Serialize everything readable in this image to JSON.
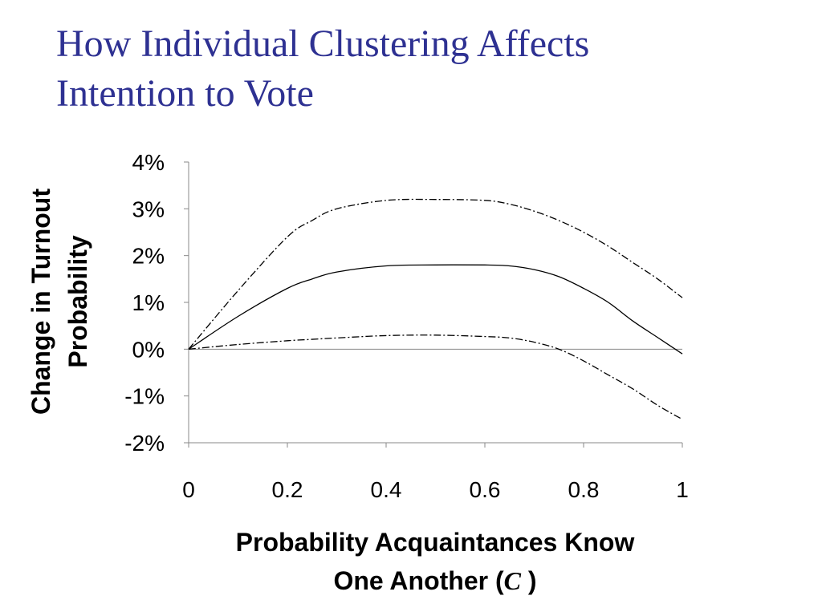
{
  "slide": {
    "title_line1": "How Individual Clustering Affects",
    "title_line2": "Intention to Vote"
  },
  "chart_data": {
    "type": "line",
    "xlabel_line1": "Probability Acquaintances Know",
    "xlabel_line2_prefix": "One Another (",
    "xlabel_symbol": "C",
    "xlabel_line2_suffix": " )",
    "ylabel_line1": "Change in Turnout",
    "ylabel_line2": "Probability",
    "xlim": [
      0,
      1
    ],
    "ylim": [
      -2,
      4
    ],
    "x_ticks": [
      0,
      0.2,
      0.4,
      0.6,
      0.8,
      1
    ],
    "x_tick_labels": [
      "0",
      "0.2",
      "0.4",
      "0.6",
      "0.8",
      "1"
    ],
    "y_ticks": [
      4,
      3,
      2,
      1,
      0,
      -1,
      -2
    ],
    "y_tick_labels": [
      "4%",
      "3%",
      "2%",
      "1%",
      "0%",
      "-1%",
      "-2%"
    ],
    "grid": false,
    "x": [
      0,
      0.1,
      0.2,
      0.25,
      0.3,
      0.4,
      0.5,
      0.6,
      0.65,
      0.7,
      0.75,
      0.8,
      0.85,
      0.9,
      0.95,
      1.0
    ],
    "series": [
      {
        "style": "solid",
        "values": [
          0,
          0.7,
          1.3,
          1.5,
          1.65,
          1.78,
          1.8,
          1.8,
          1.78,
          1.7,
          1.55,
          1.3,
          1.0,
          0.6,
          0.25,
          -0.1
        ]
      },
      {
        "style": "dash-dot",
        "values": [
          0,
          1.25,
          2.4,
          2.75,
          3.0,
          3.18,
          3.2,
          3.18,
          3.1,
          2.95,
          2.75,
          2.5,
          2.2,
          1.85,
          1.5,
          1.1
        ]
      },
      {
        "style": "dash-dot",
        "values": [
          0,
          0.1,
          0.18,
          0.21,
          0.24,
          0.29,
          0.3,
          0.27,
          0.24,
          0.15,
          0.0,
          -0.25,
          -0.55,
          -0.85,
          -1.2,
          -1.5
        ]
      }
    ]
  },
  "colors": {
    "title": "#2e3192",
    "axis": "#888888",
    "line": "#000000"
  }
}
